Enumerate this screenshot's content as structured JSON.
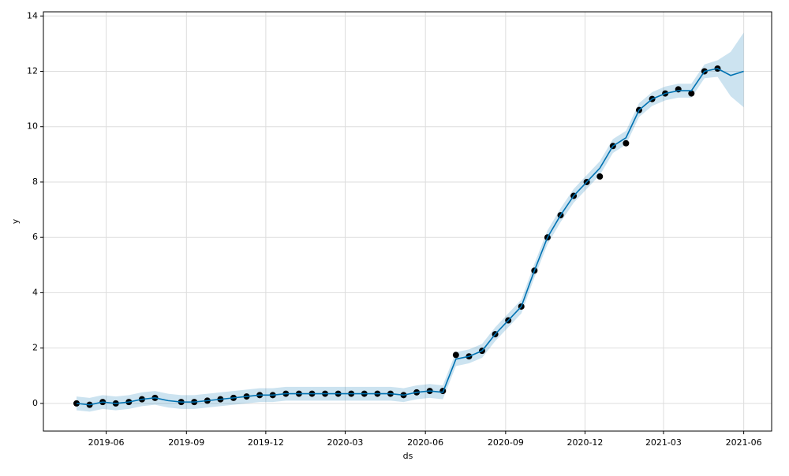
{
  "chart_data": {
    "type": "line",
    "xlabel": "ds",
    "ylabel": "y",
    "x": [
      18014,
      18029,
      18044,
      18059,
      18074,
      18089,
      18104,
      18119,
      18134,
      18149,
      18164,
      18179,
      18194,
      18209,
      18224,
      18239,
      18254,
      18269,
      18284,
      18299,
      18314,
      18329,
      18344,
      18359,
      18374,
      18389,
      18404,
      18419,
      18434,
      18449,
      18464,
      18479,
      18494,
      18509,
      18524,
      18539,
      18554,
      18569,
      18584,
      18599,
      18614,
      18629,
      18644,
      18659,
      18674,
      18689,
      18704,
      18719,
      18734,
      18749,
      18764,
      18779
    ],
    "series": [
      {
        "mark": "points",
        "color": "#000000",
        "values": [
          0.0,
          -0.05,
          0.05,
          0.0,
          0.05,
          0.15,
          0.2,
          null,
          0.05,
          0.05,
          0.1,
          0.15,
          0.2,
          0.25,
          0.3,
          0.3,
          0.35,
          0.35,
          0.35,
          0.35,
          0.35,
          0.35,
          0.35,
          0.35,
          0.35,
          0.3,
          0.4,
          0.45,
          0.45,
          1.75,
          1.7,
          1.9,
          2.5,
          3.0,
          3.5,
          4.8,
          6.0,
          6.8,
          7.5,
          8.0,
          8.2,
          9.3,
          9.4,
          10.6,
          11.0,
          11.2,
          11.35,
          11.2,
          12.0,
          12.1,
          null,
          null
        ]
      },
      {
        "mark": "line",
        "color": "#0072B2",
        "values": [
          0.0,
          -0.05,
          0.05,
          0.0,
          0.05,
          0.15,
          0.2,
          0.1,
          0.05,
          0.05,
          0.1,
          0.15,
          0.2,
          0.25,
          0.3,
          0.3,
          0.35,
          0.35,
          0.35,
          0.35,
          0.35,
          0.35,
          0.35,
          0.35,
          0.35,
          0.3,
          0.4,
          0.45,
          0.4,
          1.6,
          1.7,
          1.9,
          2.5,
          3.0,
          3.5,
          4.8,
          6.0,
          6.8,
          7.5,
          8.0,
          8.5,
          9.3,
          9.6,
          10.6,
          11.0,
          11.2,
          11.3,
          11.3,
          12.0,
          12.1,
          11.85,
          12.0
        ]
      }
    ],
    "band": {
      "color": "#0072B2",
      "lower": [
        -0.25,
        -0.3,
        -0.2,
        -0.25,
        -0.2,
        -0.1,
        -0.05,
        -0.15,
        -0.2,
        -0.2,
        -0.15,
        -0.1,
        -0.05,
        0.0,
        0.05,
        0.05,
        0.1,
        0.1,
        0.1,
        0.1,
        0.1,
        0.1,
        0.1,
        0.1,
        0.1,
        0.05,
        0.15,
        0.2,
        0.15,
        1.35,
        1.45,
        1.65,
        2.25,
        2.75,
        3.25,
        4.55,
        5.75,
        6.55,
        7.25,
        7.75,
        8.25,
        9.05,
        9.35,
        10.35,
        10.75,
        10.95,
        11.05,
        11.05,
        11.75,
        11.8,
        11.1,
        10.7
      ],
      "upper": [
        0.25,
        0.2,
        0.3,
        0.25,
        0.3,
        0.4,
        0.45,
        0.35,
        0.3,
        0.3,
        0.35,
        0.4,
        0.45,
        0.5,
        0.55,
        0.55,
        0.6,
        0.6,
        0.6,
        0.6,
        0.6,
        0.6,
        0.6,
        0.6,
        0.6,
        0.55,
        0.65,
        0.7,
        0.65,
        1.85,
        1.95,
        2.15,
        2.75,
        3.25,
        3.75,
        5.05,
        6.25,
        7.05,
        7.75,
        8.25,
        8.75,
        9.55,
        9.85,
        10.85,
        11.25,
        11.45,
        11.55,
        11.55,
        12.25,
        12.4,
        12.7,
        13.4
      ]
    },
    "xlim": [
      17976,
      18811
    ],
    "ylim": [
      -1.0,
      14.15
    ],
    "xticks": [
      {
        "value": 18048,
        "label": "2019-06"
      },
      {
        "value": 18140,
        "label": "2019-09"
      },
      {
        "value": 18231,
        "label": "2019-12"
      },
      {
        "value": 18322,
        "label": "2020-03"
      },
      {
        "value": 18414,
        "label": "2020-06"
      },
      {
        "value": 18506,
        "label": "2020-09"
      },
      {
        "value": 18597,
        "label": "2020-12"
      },
      {
        "value": 18687,
        "label": "2021-03"
      },
      {
        "value": 18779,
        "label": "2021-06"
      }
    ],
    "yticks": [
      0,
      2,
      4,
      6,
      8,
      10,
      12,
      14
    ],
    "grid": true
  }
}
